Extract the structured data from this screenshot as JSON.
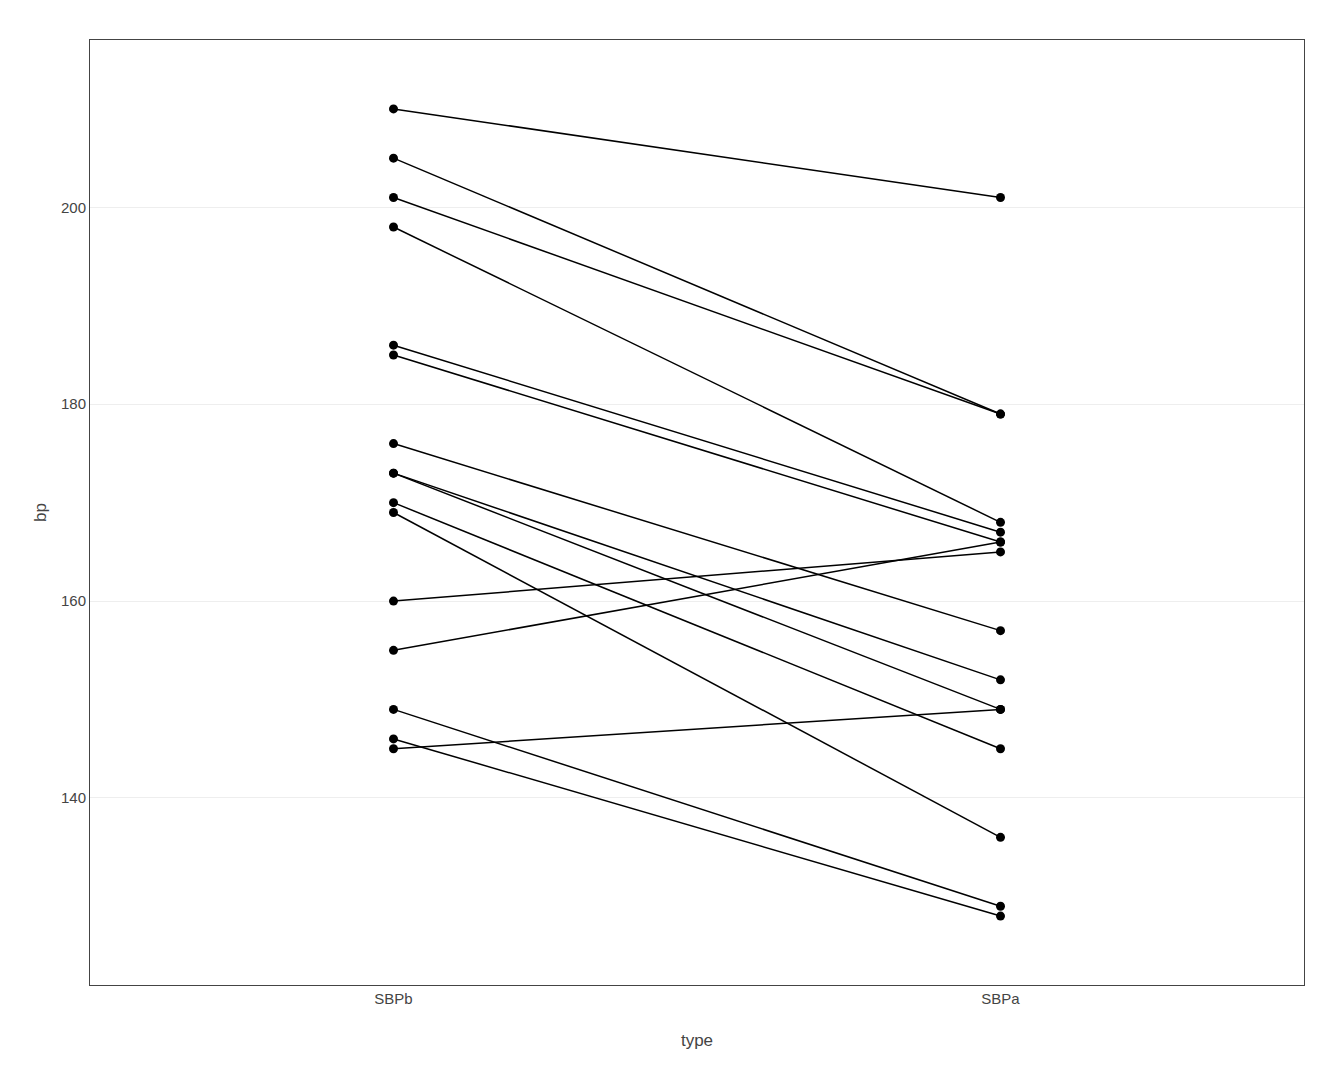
{
  "chart_data": {
    "type": "line",
    "x_label": "type",
    "y_label": "bp",
    "categories": [
      "SBPb",
      "SBPa"
    ],
    "color": "#000000",
    "marker": "circle",
    "series": [
      {
        "values": [
          210,
          201
        ]
      },
      {
        "values": [
          205,
          179
        ]
      },
      {
        "values": [
          201,
          179
        ]
      },
      {
        "values": [
          198,
          168
        ]
      },
      {
        "values": [
          186,
          167
        ]
      },
      {
        "values": [
          185,
          166
        ]
      },
      {
        "values": [
          176,
          157
        ]
      },
      {
        "values": [
          173,
          152
        ]
      },
      {
        "values": [
          173,
          149
        ]
      },
      {
        "values": [
          170,
          145
        ]
      },
      {
        "values": [
          169,
          136
        ]
      },
      {
        "values": [
          160,
          165
        ]
      },
      {
        "values": [
          155,
          166
        ]
      },
      {
        "values": [
          149,
          129
        ]
      },
      {
        "values": [
          146,
          128
        ]
      },
      {
        "values": [
          145,
          149
        ]
      }
    ],
    "ylim": [
      121,
      217
    ],
    "yticks": [
      140,
      160,
      180,
      200
    ],
    "grid": true
  }
}
